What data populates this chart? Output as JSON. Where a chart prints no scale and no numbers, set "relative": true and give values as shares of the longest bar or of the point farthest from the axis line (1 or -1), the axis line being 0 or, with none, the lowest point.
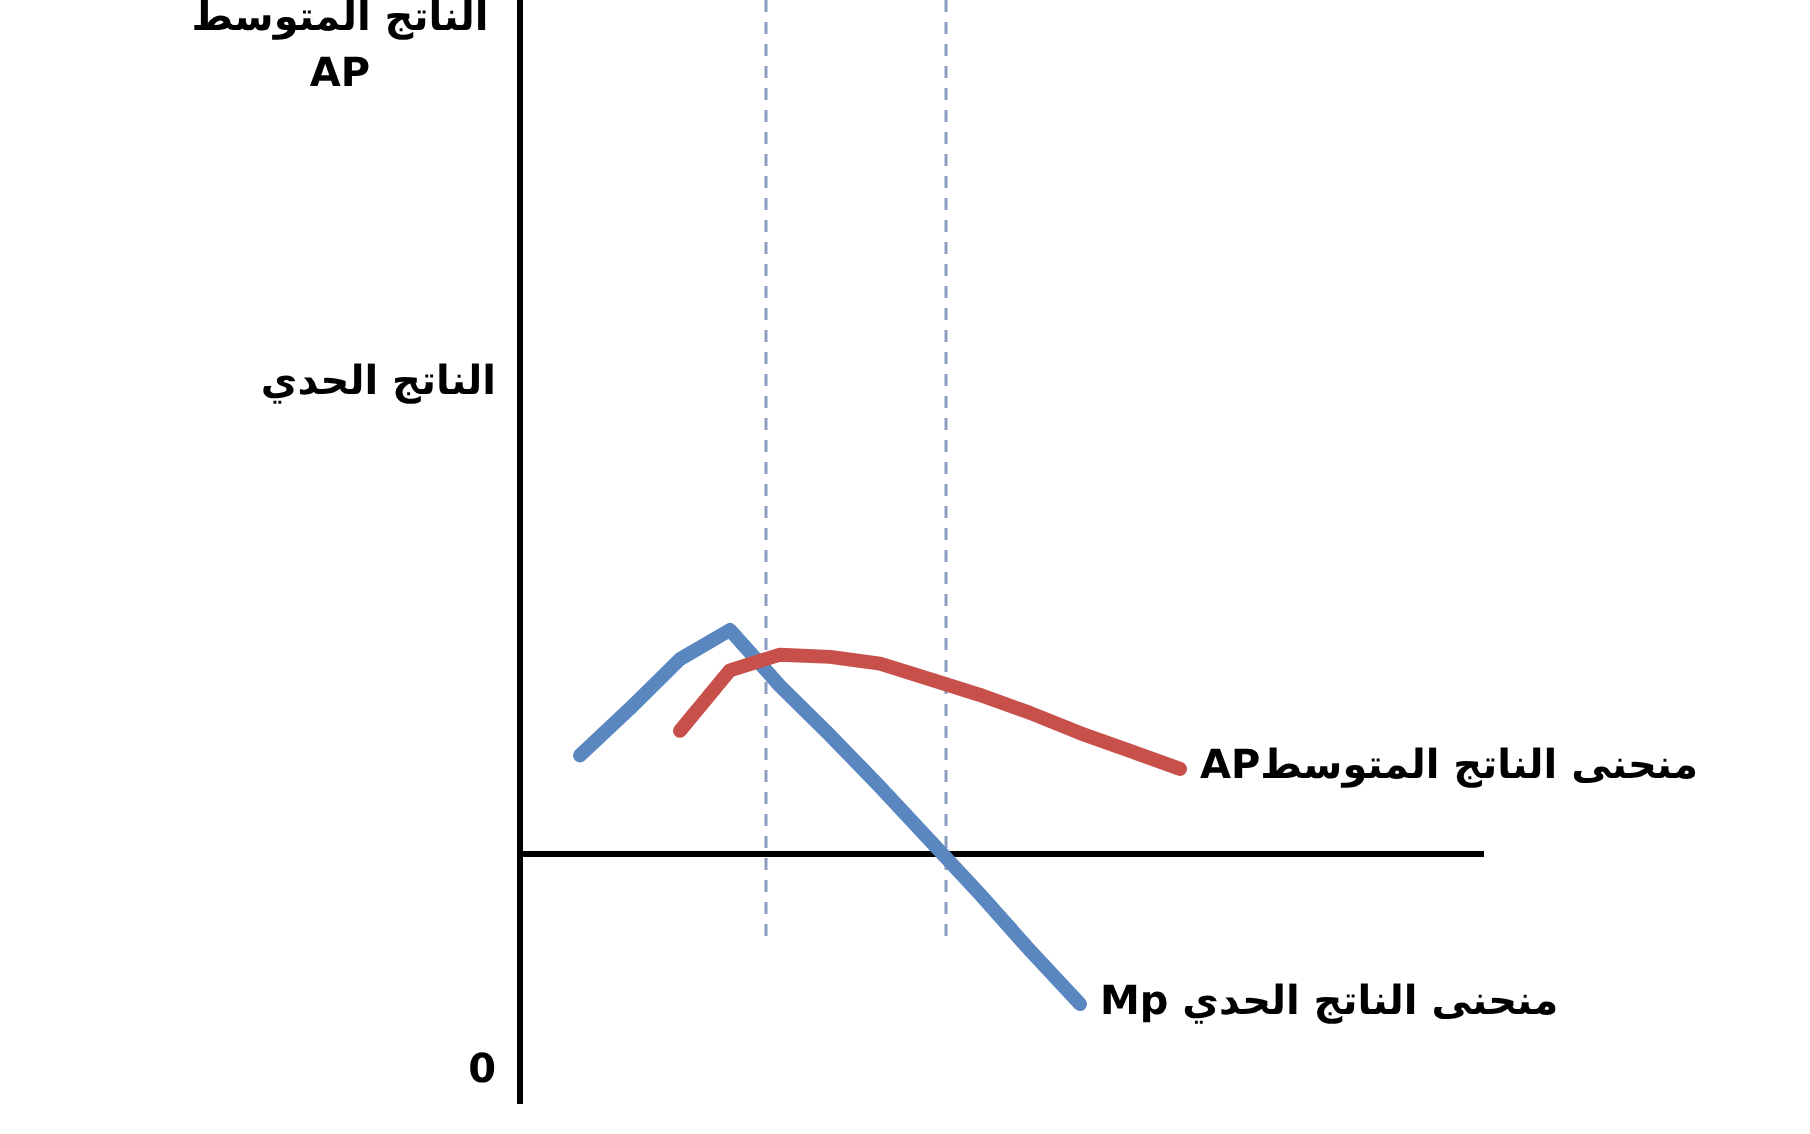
{
  "chart_data": {
    "type": "line",
    "relative": true,
    "annotations": [
      "الناتج المتوسط AP",
      "الناتج الحدي",
      "0"
    ],
    "categories": [
      null,
      null,
      null,
      null,
      null,
      null,
      null,
      null,
      null,
      null,
      null,
      null,
      null
    ],
    "series": [
      {
        "name": "منحنى الناتج الحدي Mp",
        "color": "#5b87c0",
        "values": [
          0.44,
          0.65,
          0.87,
          1,
          0.75,
          0.53,
          0.3,
          0.06,
          -0.18,
          -0.43,
          -0.67,
          null,
          null
        ]
      },
      {
        "name": "منحنى الناتج المتوسطAP",
        "color": "#c8504a",
        "values": [
          null,
          null,
          0.55,
          0.82,
          0.89,
          0.88,
          0.85,
          0.78,
          0.71,
          0.63,
          0.54,
          0.46,
          0.38
        ]
      }
    ]
  }
}
